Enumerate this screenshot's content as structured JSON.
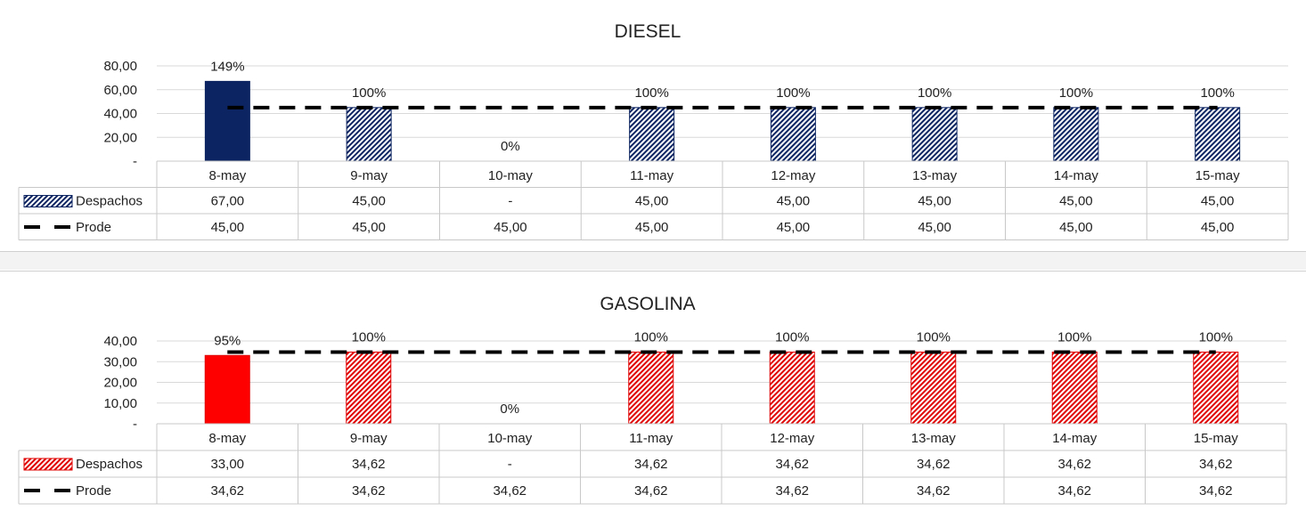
{
  "chart_data": [
    {
      "type": "bar",
      "title": "DIESEL",
      "categories": [
        "8-may",
        "9-may",
        "10-may",
        "11-may",
        "12-may",
        "13-may",
        "14-may",
        "15-may"
      ],
      "ylim": [
        0,
        80
      ],
      "yticks": [
        "80,00",
        "60,00",
        "40,00",
        "20,00",
        "-"
      ],
      "colors": {
        "solid": "#0c2461",
        "hatch": "#0c2461"
      },
      "series": [
        {
          "name": "Despachos",
          "kind": "bar",
          "values": [
            67,
            45,
            0,
            45,
            45,
            45,
            45,
            45
          ],
          "table_values": [
            "67,00",
            "45,00",
            "-",
            "45,00",
            "45,00",
            "45,00",
            "45,00",
            "45,00"
          ]
        },
        {
          "name": "Prode",
          "kind": "dashed-line",
          "values": [
            45,
            45,
            45,
            45,
            45,
            45,
            45,
            45
          ],
          "table_values": [
            "45,00",
            "45,00",
            "45,00",
            "45,00",
            "45,00",
            "45,00",
            "45,00",
            "45,00"
          ]
        }
      ],
      "data_labels": [
        "149%",
        "100%",
        "0%",
        "100%",
        "100%",
        "100%",
        "100%",
        "100%"
      ]
    },
    {
      "type": "bar",
      "title": "GASOLINA",
      "categories": [
        "8-may",
        "9-may",
        "10-may",
        "11-may",
        "12-may",
        "13-may",
        "14-may",
        "15-may"
      ],
      "ylim": [
        0,
        40
      ],
      "yticks": [
        "40,00",
        "30,00",
        "20,00",
        "10,00",
        "-"
      ],
      "colors": {
        "solid": "#ff0000",
        "hatch": "#e00000"
      },
      "series": [
        {
          "name": "Despachos",
          "kind": "bar",
          "values": [
            33,
            34.62,
            0,
            34.62,
            34.62,
            34.62,
            34.62,
            34.62
          ],
          "table_values": [
            "33,00",
            "34,62",
            "-",
            "34,62",
            "34,62",
            "34,62",
            "34,62",
            "34,62"
          ]
        },
        {
          "name": "Prode",
          "kind": "dashed-line",
          "values": [
            34.62,
            34.62,
            34.62,
            34.62,
            34.62,
            34.62,
            34.62,
            34.62
          ],
          "table_values": [
            "34,62",
            "34,62",
            "34,62",
            "34,62",
            "34,62",
            "34,62",
            "34,62",
            "34,62"
          ]
        }
      ],
      "data_labels": [
        "95%",
        "100%",
        "0%",
        "100%",
        "100%",
        "100%",
        "100%",
        "100%"
      ]
    }
  ]
}
